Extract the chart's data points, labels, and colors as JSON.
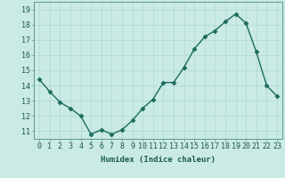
{
  "x": [
    0,
    1,
    2,
    3,
    4,
    5,
    6,
    7,
    8,
    9,
    10,
    11,
    12,
    13,
    14,
    15,
    16,
    17,
    18,
    19,
    20,
    21,
    22,
    23
  ],
  "y": [
    14.4,
    13.6,
    12.9,
    12.5,
    12.0,
    10.8,
    11.1,
    10.8,
    11.1,
    11.7,
    12.5,
    13.1,
    14.2,
    14.2,
    15.2,
    16.4,
    17.2,
    17.6,
    18.2,
    18.7,
    18.1,
    16.2,
    14.0,
    13.3
  ],
  "line_color": "#1a6b5e",
  "marker": "D",
  "marker_size": 2.5,
  "bg_color": "#caeae4",
  "grid_color": "#b0d8d0",
  "xlabel": "Humidex (Indice chaleur)",
  "xlim": [
    -0.5,
    23.5
  ],
  "ylim": [
    10.5,
    19.5
  ],
  "yticks": [
    11,
    12,
    13,
    14,
    15,
    16,
    17,
    18,
    19
  ],
  "xticks": [
    0,
    1,
    2,
    3,
    4,
    5,
    6,
    7,
    8,
    9,
    10,
    11,
    12,
    13,
    14,
    15,
    16,
    17,
    18,
    19,
    20,
    21,
    22,
    23
  ],
  "xlabel_fontsize": 6.5,
  "tick_fontsize": 6.0,
  "linewidth": 1.0
}
